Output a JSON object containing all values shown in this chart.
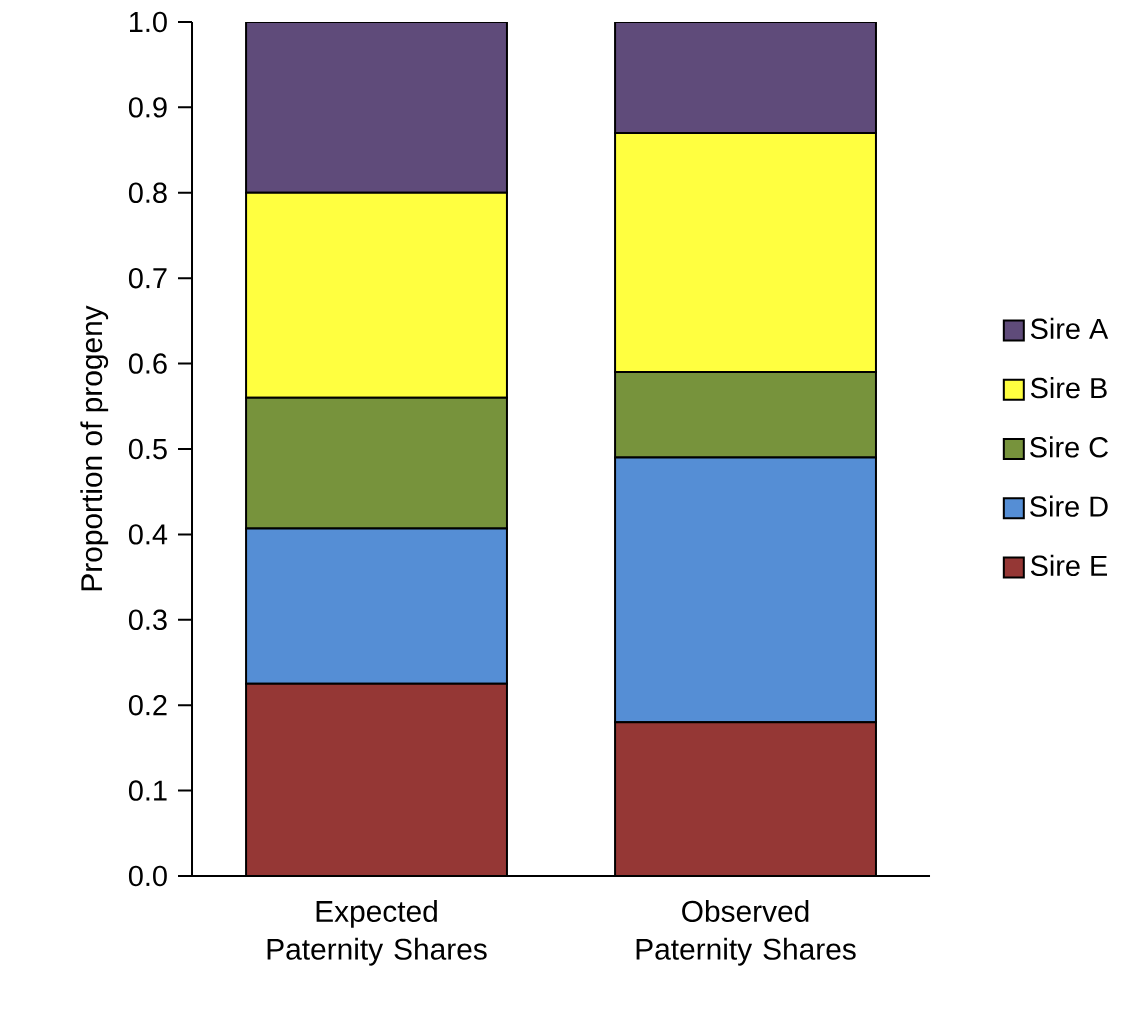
{
  "chart_data": {
    "type": "bar",
    "stacked": true,
    "ylabel": "Proportion of progeny",
    "categories": [
      "Expected Paternity Shares",
      "Observed Paternity Shares"
    ],
    "series": [
      {
        "name": "Sire E",
        "color": "#953735",
        "values": [
          0.225,
          0.18
        ]
      },
      {
        "name": "Sire D",
        "color": "#558ed5",
        "values": [
          0.182,
          0.31
        ]
      },
      {
        "name": "Sire C",
        "color": "#77933c",
        "values": [
          0.153,
          0.1
        ]
      },
      {
        "name": "Sire B",
        "color": "#ffff40",
        "values": [
          0.24,
          0.28
        ]
      },
      {
        "name": "Sire A",
        "color": "#5f4b7a",
        "values": [
          0.2,
          0.13
        ]
      }
    ],
    "ylim": [
      0,
      1
    ],
    "yticks": [
      {
        "value": 0,
        "label": "0.0"
      },
      {
        "value": 0.1,
        "label": "0.1"
      },
      {
        "value": 0.2,
        "label": "0.2"
      },
      {
        "value": 0.3,
        "label": "0.3"
      },
      {
        "value": 0.4,
        "label": "0.4"
      },
      {
        "value": 0.5,
        "label": "0.5"
      },
      {
        "value": 0.6,
        "label": "0.6"
      },
      {
        "value": 0.7,
        "label": "0.7"
      },
      {
        "value": 0.8,
        "label": "0.8"
      },
      {
        "value": 0.9,
        "label": "0.9"
      },
      {
        "value": 1,
        "label": "1.0"
      }
    ],
    "grid": false,
    "legend": "right"
  }
}
